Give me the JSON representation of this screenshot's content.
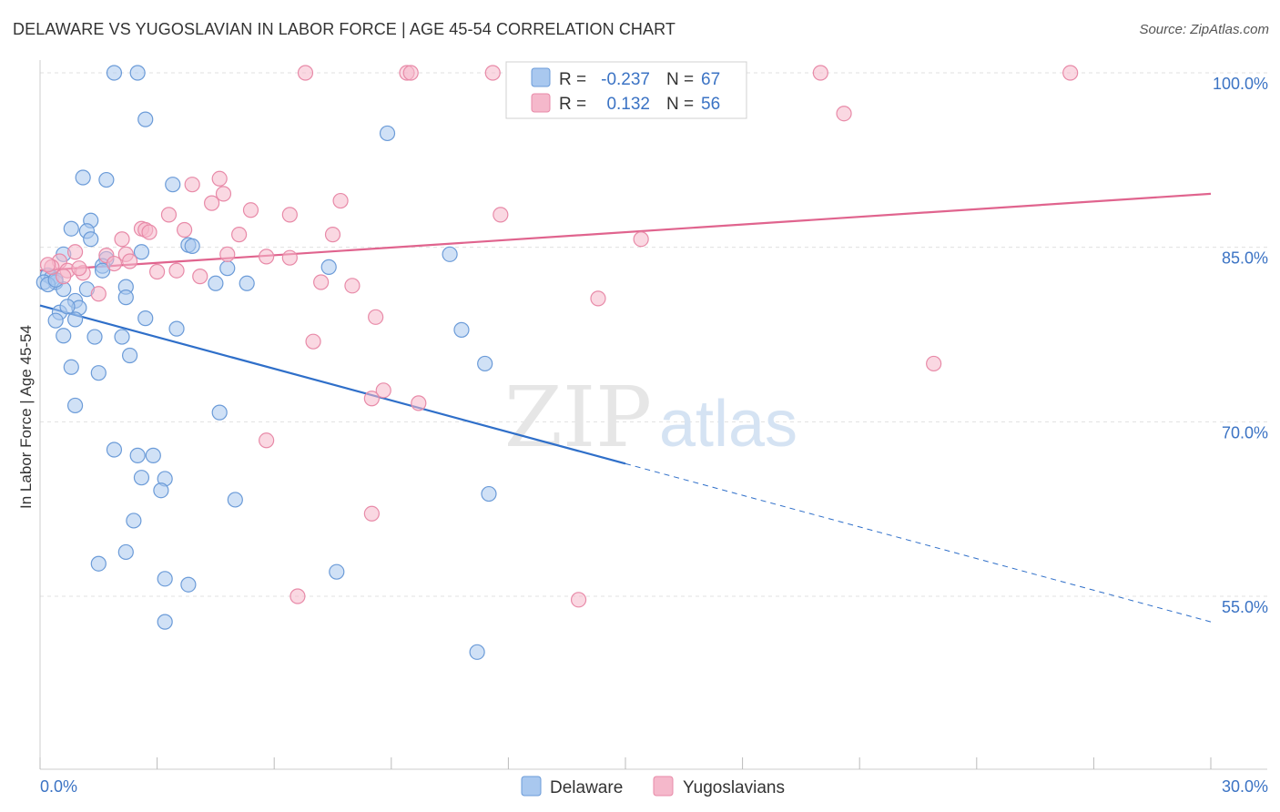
{
  "title": "DELAWARE VS YUGOSLAVIAN IN LABOR FORCE | AGE 45-54 CORRELATION CHART",
  "source": "Source: ZipAtlas.com",
  "watermark": {
    "zip": "ZIP",
    "atlas": "atlas"
  },
  "colors": {
    "delaware_fill": "#a9c8ef",
    "delaware_stroke": "#6b9bd8",
    "delaware_line": "#2f6fc9",
    "yugo_fill": "#f5b8cb",
    "yugo_stroke": "#e88aa8",
    "yugo_line": "#e0648e",
    "tick_label": "#3b73c4",
    "grid": "#e0e0e0"
  },
  "legend": {
    "rows": [
      {
        "r_label": "R =",
        "r_value": "-0.237",
        "n_label": "N =",
        "n_value": "67"
      },
      {
        "r_label": "R =",
        "r_value": "0.132",
        "n_label": "N =",
        "n_value": "56"
      }
    ]
  },
  "bottom_legend": [
    "Delaware",
    "Yugoslavians"
  ],
  "chart_data": {
    "type": "scatter",
    "title": "DELAWARE VS YUGOSLAVIAN IN LABOR FORCE | AGE 45-54 CORRELATION CHART",
    "xlabel": "",
    "ylabel": "In Labor Force | Age 45-54",
    "xlim": [
      0,
      30
    ],
    "ylim": [
      40,
      102
    ],
    "x_tick_labels": [
      "0.0%",
      "30.0%"
    ],
    "x_tick_values": [
      0,
      3,
      6,
      9,
      12,
      15,
      18,
      21,
      24,
      27,
      30
    ],
    "y_tick_labels": [
      "100.0%",
      "85.0%",
      "70.0%",
      "55.0%"
    ],
    "y_tick_values": [
      100,
      85,
      70,
      55
    ],
    "series": [
      {
        "name": "Delaware",
        "R": -0.237,
        "N": 67,
        "trend": {
          "x0": 0,
          "y0": 80.0,
          "x1": 15,
          "y1": 66.4,
          "dash_x1": 30,
          "dash_y1": 52.8
        },
        "points": [
          [
            1.9,
            100
          ],
          [
            2.5,
            100
          ],
          [
            2.7,
            96
          ],
          [
            8.9,
            94.8
          ],
          [
            1.1,
            91.0
          ],
          [
            1.7,
            90.8
          ],
          [
            3.4,
            90.4
          ],
          [
            1.3,
            87.3
          ],
          [
            0.8,
            86.6
          ],
          [
            1.2,
            86.4
          ],
          [
            1.3,
            85.7
          ],
          [
            3.8,
            85.2
          ],
          [
            3.9,
            85.1
          ],
          [
            2.6,
            84.6
          ],
          [
            10.5,
            84.4
          ],
          [
            0.6,
            84.4
          ],
          [
            1.7,
            84.0
          ],
          [
            1.6,
            83.4
          ],
          [
            1.6,
            83.0
          ],
          [
            4.8,
            83.2
          ],
          [
            7.4,
            83.3
          ],
          [
            0.2,
            82.6
          ],
          [
            0.3,
            82.4
          ],
          [
            0.4,
            82.0
          ],
          [
            0.1,
            82.0
          ],
          [
            0.2,
            81.8
          ],
          [
            0.6,
            81.4
          ],
          [
            1.2,
            81.4
          ],
          [
            4.5,
            81.9
          ],
          [
            5.3,
            81.9
          ],
          [
            2.2,
            81.6
          ],
          [
            2.2,
            80.7
          ],
          [
            0.9,
            80.4
          ],
          [
            1.0,
            79.8
          ],
          [
            0.5,
            79.4
          ],
          [
            0.4,
            78.7
          ],
          [
            0.9,
            78.8
          ],
          [
            2.7,
            78.9
          ],
          [
            3.5,
            78.0
          ],
          [
            10.8,
            77.9
          ],
          [
            0.6,
            77.4
          ],
          [
            1.4,
            77.3
          ],
          [
            2.1,
            77.3
          ],
          [
            2.3,
            75.7
          ],
          [
            0.8,
            74.7
          ],
          [
            1.5,
            74.2
          ],
          [
            11.4,
            75.0
          ],
          [
            0.9,
            71.4
          ],
          [
            4.6,
            70.8
          ],
          [
            1.9,
            67.6
          ],
          [
            2.5,
            67.1
          ],
          [
            2.9,
            67.1
          ],
          [
            2.6,
            65.2
          ],
          [
            3.2,
            65.1
          ],
          [
            3.1,
            64.1
          ],
          [
            11.5,
            63.8
          ],
          [
            5.0,
            63.3
          ],
          [
            2.4,
            61.5
          ],
          [
            2.2,
            58.8
          ],
          [
            1.5,
            57.8
          ],
          [
            7.6,
            57.1
          ],
          [
            3.2,
            56.5
          ],
          [
            3.8,
            56.0
          ],
          [
            3.2,
            52.8
          ],
          [
            11.2,
            50.2
          ],
          [
            0.4,
            82.2
          ],
          [
            0.7,
            79.9
          ]
        ]
      },
      {
        "name": "Yugoslavians",
        "R": 0.132,
        "N": 56,
        "trend": {
          "x0": 0,
          "y0": 83.0,
          "x1": 30,
          "y1": 89.6
        },
        "points": [
          [
            6.8,
            100
          ],
          [
            9.4,
            100
          ],
          [
            9.5,
            100
          ],
          [
            11.6,
            100
          ],
          [
            20.0,
            100
          ],
          [
            26.4,
            100
          ],
          [
            20.6,
            96.5
          ],
          [
            4.6,
            90.9
          ],
          [
            3.9,
            90.4
          ],
          [
            4.7,
            89.6
          ],
          [
            7.7,
            89.0
          ],
          [
            4.4,
            88.8
          ],
          [
            5.4,
            88.2
          ],
          [
            3.3,
            87.8
          ],
          [
            6.4,
            87.8
          ],
          [
            11.8,
            87.8
          ],
          [
            2.6,
            86.6
          ],
          [
            2.7,
            86.5
          ],
          [
            3.7,
            86.5
          ],
          [
            2.8,
            86.3
          ],
          [
            5.1,
            86.1
          ],
          [
            7.5,
            86.1
          ],
          [
            2.1,
            85.7
          ],
          [
            15.4,
            85.7
          ],
          [
            2.2,
            84.4
          ],
          [
            4.8,
            84.4
          ],
          [
            1.7,
            84.3
          ],
          [
            5.8,
            84.2
          ],
          [
            6.4,
            84.1
          ],
          [
            0.9,
            84.6
          ],
          [
            0.5,
            83.8
          ],
          [
            0.3,
            83.3
          ],
          [
            1.9,
            83.6
          ],
          [
            2.3,
            83.8
          ],
          [
            3.0,
            82.9
          ],
          [
            3.5,
            83.0
          ],
          [
            0.7,
            83.0
          ],
          [
            1.1,
            82.8
          ],
          [
            0.6,
            82.5
          ],
          [
            4.1,
            82.5
          ],
          [
            7.2,
            82.0
          ],
          [
            8.0,
            81.7
          ],
          [
            1.5,
            81.0
          ],
          [
            14.3,
            80.6
          ],
          [
            8.6,
            79.0
          ],
          [
            7.0,
            76.9
          ],
          [
            22.9,
            75.0
          ],
          [
            8.8,
            72.7
          ],
          [
            8.5,
            72.0
          ],
          [
            9.7,
            71.6
          ],
          [
            5.8,
            68.4
          ],
          [
            8.5,
            62.1
          ],
          [
            6.6,
            55.0
          ],
          [
            13.8,
            54.7
          ],
          [
            0.2,
            83.5
          ],
          [
            1.0,
            83.2
          ]
        ]
      }
    ],
    "legend_position": "top-center"
  }
}
